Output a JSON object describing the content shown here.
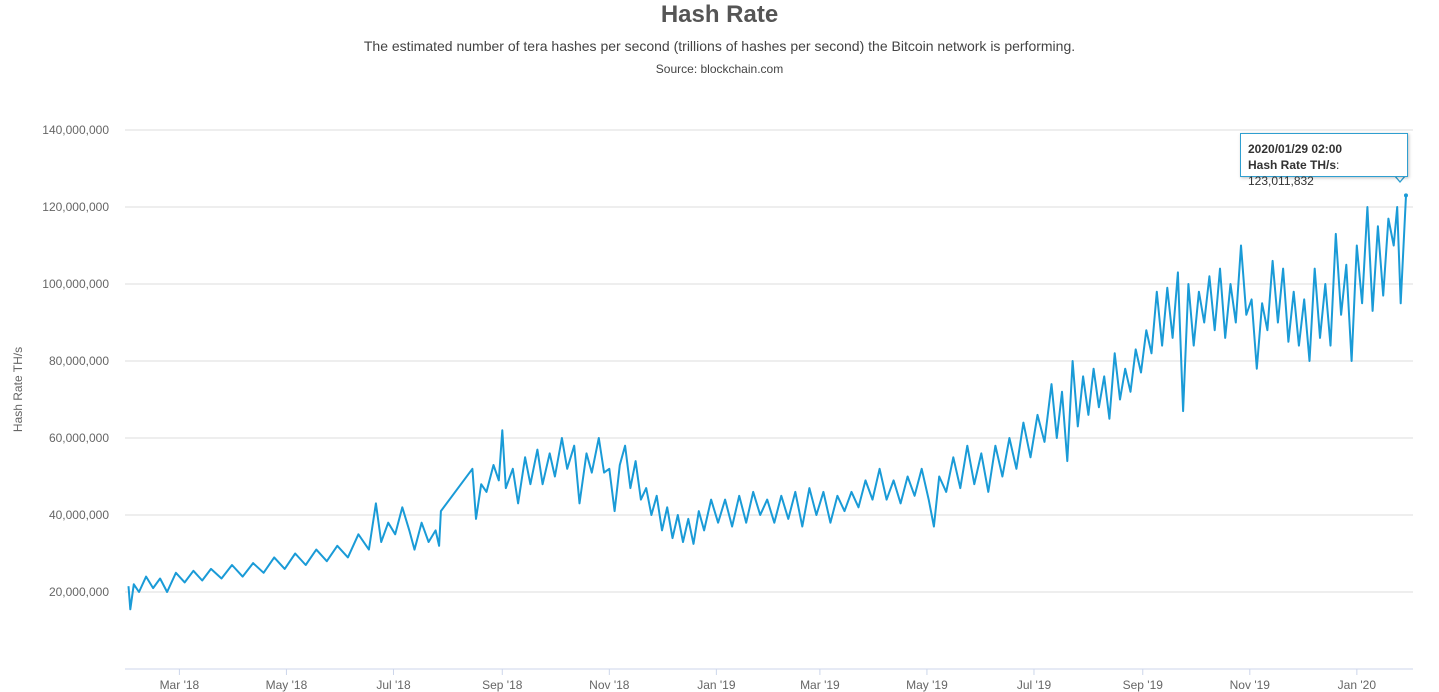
{
  "header": {
    "title": "Hash Rate",
    "subtitle": "The estimated number of tera hashes per second (trillions of hashes per second) the Bitcoin network is performing.",
    "source": "Source: blockchain.com"
  },
  "tooltip": {
    "date": "2020/01/29 02:00",
    "series_label": "Hash Rate TH/s",
    "value_text": "123,011,832"
  },
  "colors": {
    "line": "#1a9bd7",
    "grid": "#dddddd",
    "axis_text": "#666666"
  },
  "chart_data": {
    "type": "line",
    "title": "Hash Rate",
    "xlabel": "",
    "ylabel": "Hash Rate TH/s",
    "ylim": [
      0,
      140000000
    ],
    "xlim": [
      "2018-01-29",
      "2020-02-02"
    ],
    "grid": true,
    "y_ticks": [
      20000000,
      40000000,
      60000000,
      80000000,
      100000000,
      120000000,
      140000000
    ],
    "y_tick_labels": [
      "20,000,000",
      "40,000,000",
      "60,000,000",
      "80,000,000",
      "100,000,000",
      "120,000,000",
      "140,000,000"
    ],
    "x_ticks": [
      "2018-03-01",
      "2018-05-01",
      "2018-07-01",
      "2018-09-01",
      "2018-11-01",
      "2019-01-01",
      "2019-03-01",
      "2019-05-01",
      "2019-07-01",
      "2019-09-01",
      "2019-11-01",
      "2020-01-01"
    ],
    "x_tick_labels": [
      "Mar '18",
      "May '18",
      "Jul '18",
      "Sep '18",
      "Nov '18",
      "Jan '19",
      "Mar '19",
      "May '19",
      "Jul '19",
      "Sep '19",
      "Nov '19",
      "Jan '20"
    ],
    "series": [
      {
        "name": "Hash Rate TH/s",
        "points": [
          [
            "2018-01-31",
            21500000
          ],
          [
            "2018-02-01",
            15500000
          ],
          [
            "2018-02-03",
            22000000
          ],
          [
            "2018-02-06",
            20000000
          ],
          [
            "2018-02-10",
            24000000
          ],
          [
            "2018-02-14",
            21000000
          ],
          [
            "2018-02-18",
            23500000
          ],
          [
            "2018-02-22",
            20000000
          ],
          [
            "2018-02-27",
            25000000
          ],
          [
            "2018-03-04",
            22500000
          ],
          [
            "2018-03-09",
            25500000
          ],
          [
            "2018-03-14",
            23000000
          ],
          [
            "2018-03-19",
            26000000
          ],
          [
            "2018-03-25",
            23500000
          ],
          [
            "2018-03-31",
            27000000
          ],
          [
            "2018-04-06",
            24000000
          ],
          [
            "2018-04-12",
            27500000
          ],
          [
            "2018-04-18",
            25000000
          ],
          [
            "2018-04-24",
            29000000
          ],
          [
            "2018-04-30",
            26000000
          ],
          [
            "2018-05-06",
            30000000
          ],
          [
            "2018-05-12",
            27000000
          ],
          [
            "2018-05-18",
            31000000
          ],
          [
            "2018-05-24",
            28000000
          ],
          [
            "2018-05-30",
            32000000
          ],
          [
            "2018-06-05",
            29000000
          ],
          [
            "2018-06-11",
            35000000
          ],
          [
            "2018-06-17",
            31000000
          ],
          [
            "2018-06-21",
            43000000
          ],
          [
            "2018-06-24",
            33000000
          ],
          [
            "2018-06-28",
            38000000
          ],
          [
            "2018-07-02",
            35000000
          ],
          [
            "2018-07-06",
            42000000
          ],
          [
            "2018-07-10",
            36000000
          ],
          [
            "2018-07-13",
            31000000
          ],
          [
            "2018-07-17",
            38000000
          ],
          [
            "2018-07-21",
            33000000
          ],
          [
            "2018-07-25",
            36000000
          ],
          [
            "2018-07-27",
            32000000
          ],
          [
            "2018-07-28",
            41000000
          ],
          [
            "2018-08-15",
            52000000
          ],
          [
            "2018-08-17",
            39000000
          ],
          [
            "2018-08-20",
            48000000
          ],
          [
            "2018-08-23",
            46000000
          ],
          [
            "2018-08-27",
            53000000
          ],
          [
            "2018-08-30",
            49000000
          ],
          [
            "2018-09-01",
            62000000
          ],
          [
            "2018-09-03",
            47000000
          ],
          [
            "2018-09-07",
            52000000
          ],
          [
            "2018-09-10",
            43000000
          ],
          [
            "2018-09-14",
            55000000
          ],
          [
            "2018-09-17",
            48000000
          ],
          [
            "2018-09-21",
            57000000
          ],
          [
            "2018-09-24",
            48000000
          ],
          [
            "2018-09-28",
            56000000
          ],
          [
            "2018-10-01",
            50000000
          ],
          [
            "2018-10-05",
            60000000
          ],
          [
            "2018-10-08",
            52000000
          ],
          [
            "2018-10-12",
            58000000
          ],
          [
            "2018-10-15",
            43000000
          ],
          [
            "2018-10-19",
            56000000
          ],
          [
            "2018-10-22",
            51000000
          ],
          [
            "2018-10-26",
            60000000
          ],
          [
            "2018-10-29",
            51000000
          ],
          [
            "2018-11-01",
            52000000
          ],
          [
            "2018-11-04",
            41000000
          ],
          [
            "2018-11-07",
            53000000
          ],
          [
            "2018-11-10",
            58000000
          ],
          [
            "2018-11-13",
            47000000
          ],
          [
            "2018-11-16",
            54000000
          ],
          [
            "2018-11-19",
            44000000
          ],
          [
            "2018-11-22",
            47000000
          ],
          [
            "2018-11-25",
            40000000
          ],
          [
            "2018-11-28",
            45000000
          ],
          [
            "2018-12-01",
            36000000
          ],
          [
            "2018-12-04",
            42000000
          ],
          [
            "2018-12-07",
            34000000
          ],
          [
            "2018-12-10",
            40000000
          ],
          [
            "2018-12-13",
            33000000
          ],
          [
            "2018-12-16",
            39000000
          ],
          [
            "2018-12-19",
            32500000
          ],
          [
            "2018-12-22",
            41000000
          ],
          [
            "2018-12-25",
            36000000
          ],
          [
            "2018-12-29",
            44000000
          ],
          [
            "2019-01-02",
            38000000
          ],
          [
            "2019-01-06",
            44000000
          ],
          [
            "2019-01-10",
            37000000
          ],
          [
            "2019-01-14",
            45000000
          ],
          [
            "2019-01-18",
            38000000
          ],
          [
            "2019-01-22",
            46000000
          ],
          [
            "2019-01-26",
            40000000
          ],
          [
            "2019-01-30",
            44000000
          ],
          [
            "2019-02-03",
            38000000
          ],
          [
            "2019-02-07",
            45000000
          ],
          [
            "2019-02-11",
            39000000
          ],
          [
            "2019-02-15",
            46000000
          ],
          [
            "2019-02-19",
            37000000
          ],
          [
            "2019-02-23",
            47000000
          ],
          [
            "2019-02-27",
            40000000
          ],
          [
            "2019-03-03",
            46000000
          ],
          [
            "2019-03-07",
            38000000
          ],
          [
            "2019-03-11",
            45000000
          ],
          [
            "2019-03-15",
            41000000
          ],
          [
            "2019-03-19",
            46000000
          ],
          [
            "2019-03-23",
            42000000
          ],
          [
            "2019-03-27",
            49000000
          ],
          [
            "2019-03-31",
            44000000
          ],
          [
            "2019-04-04",
            52000000
          ],
          [
            "2019-04-08",
            44000000
          ],
          [
            "2019-04-12",
            49000000
          ],
          [
            "2019-04-16",
            43000000
          ],
          [
            "2019-04-20",
            50000000
          ],
          [
            "2019-04-24",
            45000000
          ],
          [
            "2019-04-28",
            52000000
          ],
          [
            "2019-05-02",
            44000000
          ],
          [
            "2019-05-05",
            37000000
          ],
          [
            "2019-05-08",
            50000000
          ],
          [
            "2019-05-12",
            46000000
          ],
          [
            "2019-05-16",
            55000000
          ],
          [
            "2019-05-20",
            47000000
          ],
          [
            "2019-05-24",
            58000000
          ],
          [
            "2019-05-28",
            48000000
          ],
          [
            "2019-06-01",
            56000000
          ],
          [
            "2019-06-05",
            46000000
          ],
          [
            "2019-06-09",
            58000000
          ],
          [
            "2019-06-13",
            50000000
          ],
          [
            "2019-06-17",
            60000000
          ],
          [
            "2019-06-21",
            52000000
          ],
          [
            "2019-06-25",
            64000000
          ],
          [
            "2019-06-29",
            55000000
          ],
          [
            "2019-07-03",
            66000000
          ],
          [
            "2019-07-07",
            59000000
          ],
          [
            "2019-07-11",
            74000000
          ],
          [
            "2019-07-14",
            60000000
          ],
          [
            "2019-07-17",
            72000000
          ],
          [
            "2019-07-20",
            54000000
          ],
          [
            "2019-07-23",
            80000000
          ],
          [
            "2019-07-26",
            63000000
          ],
          [
            "2019-07-29",
            76000000
          ],
          [
            "2019-08-01",
            66000000
          ],
          [
            "2019-08-04",
            78000000
          ],
          [
            "2019-08-07",
            68000000
          ],
          [
            "2019-08-10",
            76000000
          ],
          [
            "2019-08-13",
            65000000
          ],
          [
            "2019-08-16",
            82000000
          ],
          [
            "2019-08-19",
            70000000
          ],
          [
            "2019-08-22",
            78000000
          ],
          [
            "2019-08-25",
            72000000
          ],
          [
            "2019-08-28",
            83000000
          ],
          [
            "2019-08-31",
            77000000
          ],
          [
            "2019-09-03",
            88000000
          ],
          [
            "2019-09-06",
            82000000
          ],
          [
            "2019-09-09",
            98000000
          ],
          [
            "2019-09-12",
            84000000
          ],
          [
            "2019-09-15",
            99000000
          ],
          [
            "2019-09-18",
            86000000
          ],
          [
            "2019-09-21",
            103000000
          ],
          [
            "2019-09-24",
            67000000
          ],
          [
            "2019-09-27",
            100000000
          ],
          [
            "2019-09-30",
            84000000
          ],
          [
            "2019-10-03",
            98000000
          ],
          [
            "2019-10-06",
            90000000
          ],
          [
            "2019-10-09",
            102000000
          ],
          [
            "2019-10-12",
            88000000
          ],
          [
            "2019-10-15",
            104000000
          ],
          [
            "2019-10-18",
            86000000
          ],
          [
            "2019-10-21",
            100000000
          ],
          [
            "2019-10-24",
            90000000
          ],
          [
            "2019-10-27",
            110000000
          ],
          [
            "2019-10-30",
            92000000
          ],
          [
            "2019-11-02",
            96000000
          ],
          [
            "2019-11-05",
            78000000
          ],
          [
            "2019-11-08",
            95000000
          ],
          [
            "2019-11-11",
            88000000
          ],
          [
            "2019-11-14",
            106000000
          ],
          [
            "2019-11-17",
            90000000
          ],
          [
            "2019-11-20",
            104000000
          ],
          [
            "2019-11-23",
            85000000
          ],
          [
            "2019-11-26",
            98000000
          ],
          [
            "2019-11-29",
            84000000
          ],
          [
            "2019-12-02",
            96000000
          ],
          [
            "2019-12-05",
            80000000
          ],
          [
            "2019-12-08",
            104000000
          ],
          [
            "2019-12-11",
            86000000
          ],
          [
            "2019-12-14",
            100000000
          ],
          [
            "2019-12-17",
            84000000
          ],
          [
            "2019-12-20",
            113000000
          ],
          [
            "2019-12-23",
            92000000
          ],
          [
            "2019-12-26",
            105000000
          ],
          [
            "2019-12-29",
            80000000
          ],
          [
            "2020-01-01",
            110000000
          ],
          [
            "2020-01-04",
            95000000
          ],
          [
            "2020-01-07",
            120000000
          ],
          [
            "2020-01-10",
            93000000
          ],
          [
            "2020-01-13",
            115000000
          ],
          [
            "2020-01-16",
            97000000
          ],
          [
            "2020-01-19",
            117000000
          ],
          [
            "2020-01-22",
            110000000
          ],
          [
            "2020-01-24",
            120000000
          ],
          [
            "2020-01-26",
            95000000
          ],
          [
            "2020-01-29",
            123011832
          ]
        ]
      }
    ]
  }
}
